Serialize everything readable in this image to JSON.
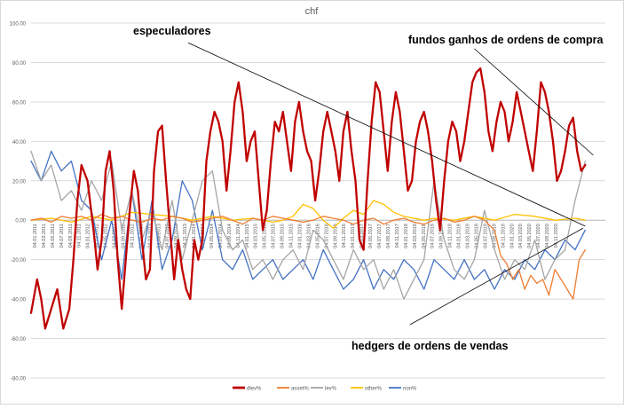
{
  "chart_data": {
    "type": "line",
    "title": "chf",
    "xlabel": "",
    "ylabel": "",
    "ylim": [
      -80,
      100
    ],
    "yticks": [
      -80,
      -60,
      -40,
      -20,
      0,
      20,
      40,
      60,
      80,
      100
    ],
    "yticklabels": [
      "-80.00",
      "-60.00",
      "-40.00",
      "-20.00",
      "0.00",
      "20.00",
      "40.00",
      "60.00",
      "80.00",
      "100.00"
    ],
    "grid": true,
    "legend_position": "bottom",
    "x_range": [
      0,
      28.5
    ],
    "xticklabels": [
      "04.01.2011",
      "04.03.2011",
      "04.05.2011",
      "04.07.2011",
      "04.09.2011",
      "04.11.2011",
      "04.01.2012",
      "04.03.2012",
      "04.05.2012",
      "04.07.2012",
      "04.09.2012",
      "04.11.2012",
      "04.01.2013",
      "04.03.2013",
      "04.05.2013",
      "04.07.2013",
      "04.09.2013",
      "04.11.2013",
      "04.01.2014",
      "04.03.2014",
      "04.05.2014",
      "04.07.2014",
      "04.09.2014",
      "04.11.2014",
      "04.01.2015",
      "04.03.2015",
      "04.05.2015",
      "04.07.2015",
      "04.09.2015",
      "04.11.2015",
      "04.01.2016",
      "04.03.2016",
      "04.05.2016",
      "04.07.2016",
      "04.09.2016",
      "04.11.2016",
      "04.01.2017",
      "04.03.2017",
      "04.05.2017",
      "04.07.2017",
      "04.09.2017",
      "04.11.2017",
      "04.01.2018",
      "04.03.2018",
      "04.05.2018",
      "04.07.2018",
      "04.09.2018",
      "04.11.2018",
      "04.01.2019",
      "04.03.2019",
      "04.05.2019",
      "04.07.2019",
      "04.09.2019",
      "04.11.2019",
      "04.01.2020",
      "04.03.2020",
      "04.05.2020",
      "04.07.2020",
      "04.09.2020",
      "04.11.2020"
    ],
    "series": [
      {
        "name": "dlev%",
        "color": "#c00000",
        "width": 2.3,
        "x": [
          0,
          0.3,
          0.5,
          0.7,
          1.0,
          1.3,
          1.6,
          1.9,
          2.1,
          2.3,
          2.5,
          2.8,
          3.1,
          3.3,
          3.5,
          3.7,
          3.9,
          4.1,
          4.3,
          4.5,
          4.7,
          4.9,
          5.1,
          5.3,
          5.5,
          5.7,
          5.9,
          6.1,
          6.3,
          6.5,
          6.7,
          6.9,
          7.1,
          7.3,
          7.5,
          7.7,
          7.9,
          8.1,
          8.3,
          8.5,
          8.7,
          8.9,
          9.1,
          9.3,
          9.5,
          9.7,
          9.9,
          10.1,
          10.3,
          10.5,
          10.7,
          10.9,
          11.1,
          11.3,
          11.5,
          11.7,
          11.9,
          12.1,
          12.3,
          12.5,
          12.7,
          12.9,
          13.1,
          13.3,
          13.5,
          13.7,
          13.9,
          14.1,
          14.3,
          14.5,
          14.7,
          14.9,
          15.1,
          15.3,
          15.5,
          15.7,
          15.9,
          16.1,
          16.3,
          16.5,
          16.7,
          16.9,
          17.1,
          17.3,
          17.5,
          17.7,
          17.9,
          18.1,
          18.3,
          18.5,
          18.7,
          18.9,
          19.1,
          19.3,
          19.5,
          19.7,
          19.9,
          20.1,
          20.3,
          20.5,
          20.7,
          20.9,
          21.1,
          21.3,
          21.5,
          21.7,
          21.9,
          22.1,
          22.3,
          22.5,
          22.7,
          22.9,
          23.1,
          23.3,
          23.5,
          23.7,
          23.9,
          24.1,
          24.3,
          24.5,
          24.7,
          24.9,
          25.1,
          25.3,
          25.5,
          25.7,
          25.9,
          26.1,
          26.3,
          26.5,
          26.7,
          26.9,
          27.1,
          27.3,
          27.5
        ],
        "values": [
          -47,
          -30,
          -40,
          -55,
          -45,
          -35,
          -55,
          -45,
          -20,
          10,
          28,
          20,
          -5,
          -25,
          -10,
          25,
          35,
          15,
          -20,
          -45,
          -20,
          5,
          25,
          15,
          -10,
          -30,
          -25,
          25,
          45,
          48,
          20,
          -5,
          -30,
          -10,
          -25,
          -35,
          -40,
          -10,
          -20,
          -10,
          30,
          45,
          55,
          50,
          40,
          15,
          35,
          60,
          70,
          55,
          30,
          40,
          45,
          20,
          -5,
          5,
          30,
          50,
          45,
          55,
          40,
          25,
          50,
          60,
          45,
          35,
          30,
          10,
          25,
          45,
          55,
          45,
          35,
          20,
          45,
          55,
          35,
          20,
          -10,
          -15,
          20,
          50,
          70,
          65,
          45,
          25,
          50,
          65,
          55,
          35,
          15,
          20,
          40,
          50,
          55,
          45,
          30,
          10,
          -5,
          20,
          40,
          50,
          45,
          30,
          40,
          55,
          70,
          75,
          77,
          65,
          45,
          35,
          50,
          60,
          55,
          40,
          50,
          65,
          55,
          45,
          35,
          25,
          45,
          70,
          65,
          55,
          40,
          20,
          25,
          35,
          48,
          52,
          35,
          25,
          28
        ]
      },
      {
        "name": "asset%",
        "color": "#ed7d31",
        "width": 1.3,
        "x": [
          0,
          0.5,
          1,
          1.5,
          2,
          2.5,
          3,
          3.5,
          4,
          4.5,
          5,
          5.5,
          6,
          6.5,
          7,
          7.5,
          8,
          8.5,
          9,
          9.5,
          10,
          10.5,
          11,
          11.5,
          12,
          12.5,
          13,
          13.5,
          14,
          14.5,
          15,
          15.5,
          16,
          16.5,
          17,
          17.5,
          18,
          18.5,
          19,
          19.5,
          20,
          20.5,
          21,
          21.5,
          22,
          22.5,
          23,
          23.3,
          23.6,
          23.9,
          24.2,
          24.5,
          24.8,
          25.1,
          25.4,
          25.7,
          26,
          26.3,
          26.6,
          26.9,
          27.2,
          27.5
        ],
        "values": [
          0,
          1,
          -1,
          2,
          1,
          2,
          0,
          3,
          1,
          2,
          0,
          -1,
          1,
          0,
          2,
          1,
          -1,
          0,
          1,
          2,
          0,
          -2,
          1,
          0,
          2,
          1,
          0,
          -1,
          0,
          2,
          1,
          0,
          -2,
          0,
          1,
          -2,
          0,
          1,
          -1,
          -2,
          0,
          1,
          -1,
          0,
          2,
          0,
          -5,
          -18,
          -22,
          -30,
          -25,
          -35,
          -28,
          -32,
          -30,
          -38,
          -25,
          -30,
          -35,
          -40,
          -20,
          -15
        ]
      },
      {
        "name": "lev%",
        "color": "#a5a5a5",
        "width": 1.3,
        "x": [
          0,
          0.5,
          1,
          1.5,
          2,
          2.5,
          3,
          3.5,
          4,
          4.5,
          5,
          5.5,
          6,
          6.5,
          7,
          7.5,
          8,
          8.5,
          9,
          9.5,
          10,
          10.5,
          11,
          11.5,
          12,
          12.5,
          13,
          13.5,
          14,
          14.5,
          15,
          15.5,
          16,
          16.5,
          17,
          17.5,
          18,
          18.5,
          19,
          19.5,
          20,
          20.5,
          21,
          21.5,
          22,
          22.5,
          23,
          23.5,
          24,
          24.5,
          25,
          25.5,
          26,
          26.5,
          27,
          27.5
        ],
        "values": [
          35,
          20,
          28,
          10,
          15,
          5,
          20,
          10,
          30,
          -5,
          15,
          -10,
          5,
          -15,
          10,
          -20,
          0,
          20,
          25,
          -5,
          -15,
          -10,
          -25,
          -20,
          -30,
          -20,
          -15,
          -25,
          -5,
          -10,
          -20,
          -30,
          -15,
          -25,
          -20,
          -35,
          -25,
          -40,
          -30,
          -20,
          20,
          -10,
          -25,
          -30,
          -20,
          5,
          -15,
          -30,
          -20,
          -25,
          -10,
          -30,
          -20,
          -15,
          10,
          30
        ]
      },
      {
        "name": "other%",
        "color": "#ffc000",
        "width": 1.3,
        "x": [
          0,
          1,
          2,
          3,
          4,
          5,
          6,
          7,
          8,
          9,
          10,
          11,
          12,
          12.5,
          13,
          13.5,
          14,
          14.5,
          15,
          15.5,
          16,
          16.5,
          17,
          17.5,
          18,
          18.5,
          19,
          19.5,
          20,
          21,
          22,
          23,
          24,
          25,
          26,
          27,
          27.5
        ],
        "values": [
          0,
          1,
          -1,
          2,
          0,
          4,
          3,
          2,
          0,
          2,
          0,
          1,
          -1,
          0,
          2,
          8,
          6,
          0,
          -4,
          1,
          5,
          3,
          10,
          8,
          4,
          2,
          1,
          0,
          1,
          0,
          2,
          0,
          3,
          2,
          0,
          1,
          0
        ]
      },
      {
        "name": "non%",
        "color": "#4472c4",
        "width": 1.3,
        "x": [
          0,
          0.5,
          1,
          1.5,
          2,
          2.5,
          3,
          3.5,
          4,
          4.5,
          5,
          5.5,
          6,
          6.5,
          7,
          7.5,
          8,
          8.5,
          9,
          9.5,
          10,
          10.5,
          11,
          11.5,
          12,
          12.5,
          13,
          13.5,
          14,
          14.5,
          15,
          15.5,
          16,
          16.5,
          17,
          17.5,
          18,
          18.5,
          19,
          19.5,
          20,
          20.5,
          21,
          21.5,
          22,
          22.5,
          23,
          23.5,
          24,
          24.5,
          25,
          25.5,
          26,
          26.5,
          27,
          27.5
        ],
        "values": [
          30,
          20,
          35,
          25,
          30,
          10,
          5,
          -20,
          0,
          -30,
          15,
          -20,
          10,
          -25,
          -10,
          20,
          10,
          -15,
          5,
          -20,
          -25,
          -15,
          -30,
          -25,
          -20,
          -30,
          -25,
          -20,
          -30,
          -15,
          -25,
          -35,
          -30,
          -20,
          -35,
          -25,
          -30,
          -20,
          -25,
          -35,
          -20,
          -25,
          -30,
          -20,
          -30,
          -25,
          -35,
          -25,
          -30,
          -20,
          -25,
          -15,
          -20,
          -10,
          -15,
          -5
        ]
      }
    ],
    "annotations": [
      {
        "text": "especuladores",
        "from": [
          7.8,
          90
        ],
        "to": [
          27.5,
          -3
        ]
      },
      {
        "text": "fundos ganhos de ordens de compra",
        "from": [
          22.0,
          87
        ],
        "to": [
          27.9,
          33
        ]
      },
      {
        "text": "hedgers de ordens de vendas",
        "from": [
          18.8,
          -53
        ],
        "to": [
          27.4,
          -4
        ]
      }
    ]
  }
}
